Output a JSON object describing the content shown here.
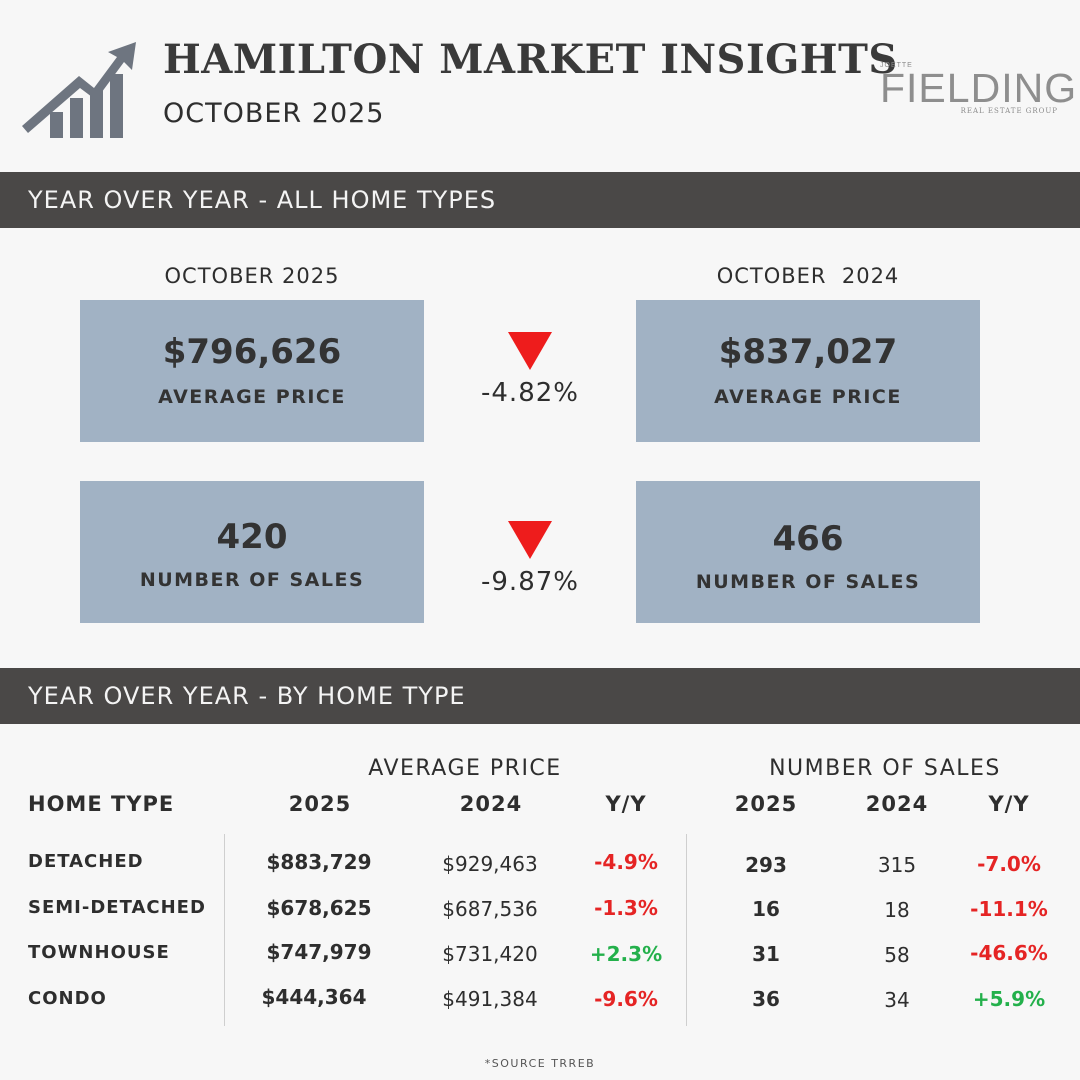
{
  "header": {
    "title": "HAMILTON MARKET INSIGHTS",
    "subtitle": "OCTOBER 2025",
    "logo_top": "JOETTE",
    "logo_main": "FIELDING",
    "logo_bottom": "REAL ESTATE GROUP"
  },
  "yoy_all": {
    "heading": "YEAR OVER YEAR - ALL HOME TYPES",
    "current_label": "OCTOBER 2025",
    "previous_label": "OCTOBER  2024",
    "avg_price": {
      "current": "$796,626",
      "previous": "$837,027",
      "label": "AVERAGE PRICE",
      "change": "-4.82%",
      "direction": "down"
    },
    "sales": {
      "current": "420",
      "previous": "466",
      "label": "NUMBER OF SALES",
      "change": "-9.87%",
      "direction": "down"
    }
  },
  "yoy_type": {
    "heading": "YEAR OVER YEAR - BY HOME TYPE",
    "group_price": "AVERAGE PRICE",
    "group_sales": "NUMBER OF SALES",
    "columns": [
      "HOME TYPE",
      "2025",
      "2024",
      "Y/Y",
      "2025",
      "2024",
      "Y/Y"
    ],
    "rows": [
      {
        "type": "DETACHED",
        "price_2025": "$883,729",
        "price_2024": "$929,463",
        "price_yy": "-4.9%",
        "sales_2025": "293",
        "sales_2024": "315",
        "sales_yy": "-7.0%"
      },
      {
        "type": "SEMI-DETACHED",
        "price_2025": "$678,625",
        "price_2024": "$687,536",
        "price_yy": "-1.3%",
        "sales_2025": "16",
        "sales_2024": "18",
        "sales_yy": "-11.1%"
      },
      {
        "type": "TOWNHOUSE",
        "price_2025": "$747,979",
        "price_2024": "$731,420",
        "price_yy": "+2.3%",
        "sales_2025": "31",
        "sales_2024": "58",
        "sales_yy": "-46.6%"
      },
      {
        "type": "CONDO",
        "price_2025": "$444,364",
        "price_2024": "$491,384",
        "price_yy": "-9.6%",
        "sales_2025": "36",
        "sales_2024": "34",
        "sales_yy": "+5.9%"
      }
    ]
  },
  "source": "*SOURCE TRREB",
  "colors": {
    "section_bar": "#4a4847",
    "card": "#a1b2c4",
    "negative": "#e52424",
    "positive": "#23b04b",
    "down_arrow": "#ee1c1c"
  }
}
